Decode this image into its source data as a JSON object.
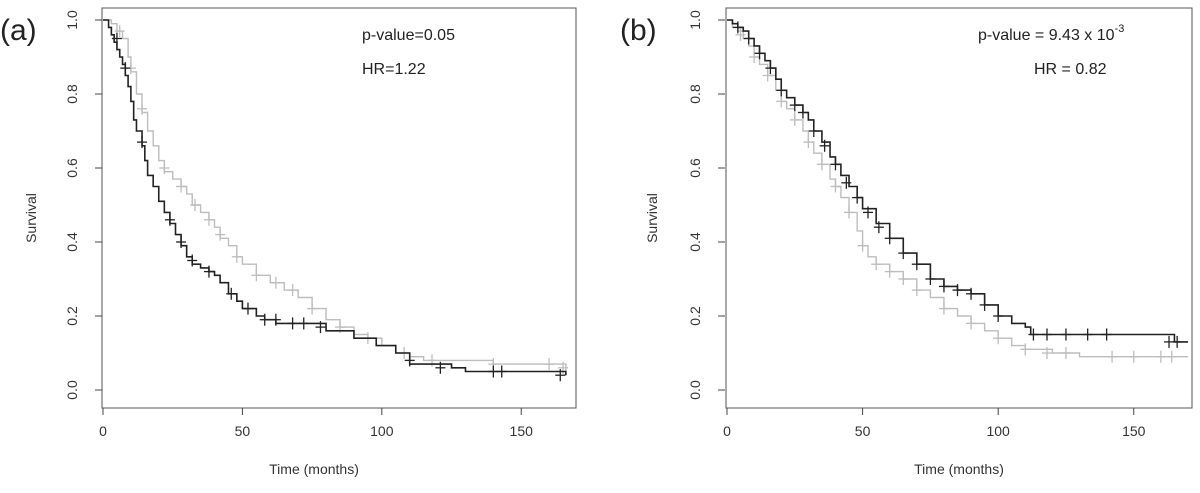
{
  "chart_data": [
    {
      "type": "line",
      "panel_label": "(a)",
      "xlabel": "Time (months)",
      "ylabel": "Survival",
      "xlim": [
        0,
        170
      ],
      "ylim": [
        0,
        1.05
      ],
      "x_ticks": [
        "0",
        "50",
        "100",
        "150"
      ],
      "y_ticks": [
        "0.0",
        "0.2",
        "0.4",
        "0.6",
        "0.8",
        "1.0"
      ],
      "grid": false,
      "annotations": {
        "pvalue": "p-value=0.05",
        "hr": "HR=1.22"
      },
      "colors": {
        "dark": "#222222",
        "light": "#bdbdbd"
      },
      "series": [
        {
          "style": "dark",
          "steps": [
            [
              0,
              1.0
            ],
            [
              2,
              0.98
            ],
            [
              3,
              0.96
            ],
            [
              4,
              0.94
            ],
            [
              5,
              0.92
            ],
            [
              6,
              0.9
            ],
            [
              7,
              0.88
            ],
            [
              8,
              0.85
            ],
            [
              9,
              0.82
            ],
            [
              10,
              0.78
            ],
            [
              11,
              0.73
            ],
            [
              12,
              0.7
            ],
            [
              14,
              0.66
            ],
            [
              15,
              0.62
            ],
            [
              16,
              0.58
            ],
            [
              18,
              0.55
            ],
            [
              20,
              0.51
            ],
            [
              22,
              0.48
            ],
            [
              24,
              0.45
            ],
            [
              26,
              0.42
            ],
            [
              28,
              0.39
            ],
            [
              30,
              0.36
            ],
            [
              32,
              0.34
            ],
            [
              35,
              0.33
            ],
            [
              38,
              0.32
            ],
            [
              40,
              0.31
            ],
            [
              42,
              0.29
            ],
            [
              45,
              0.26
            ],
            [
              48,
              0.24
            ],
            [
              50,
              0.22
            ],
            [
              55,
              0.2
            ],
            [
              58,
              0.19
            ],
            [
              62,
              0.18
            ],
            [
              80,
              0.16
            ],
            [
              90,
              0.14
            ],
            [
              98,
              0.12
            ],
            [
              105,
              0.1
            ],
            [
              110,
              0.07
            ],
            [
              125,
              0.06
            ],
            [
              130,
              0.05
            ],
            [
              140,
              0.05
            ],
            [
              166,
              0.04
            ]
          ],
          "censor": [
            [
              5,
              0.95
            ],
            [
              8,
              0.87
            ],
            [
              14,
              0.67
            ],
            [
              24,
              0.46
            ],
            [
              28,
              0.4
            ],
            [
              32,
              0.35
            ],
            [
              38,
              0.32
            ],
            [
              46,
              0.26
            ],
            [
              52,
              0.22
            ],
            [
              58,
              0.19
            ],
            [
              62,
              0.19
            ],
            [
              68,
              0.18
            ],
            [
              72,
              0.18
            ],
            [
              78,
              0.17
            ],
            [
              110,
              0.08
            ],
            [
              121,
              0.06
            ],
            [
              140,
              0.05
            ],
            [
              143,
              0.05
            ],
            [
              164,
              0.04
            ]
          ]
        },
        {
          "style": "light",
          "steps": [
            [
              0,
              1.0
            ],
            [
              3,
              0.99
            ],
            [
              5,
              0.97
            ],
            [
              7,
              0.95
            ],
            [
              9,
              0.9
            ],
            [
              10,
              0.86
            ],
            [
              12,
              0.8
            ],
            [
              14,
              0.75
            ],
            [
              16,
              0.7
            ],
            [
              18,
              0.66
            ],
            [
              20,
              0.62
            ],
            [
              22,
              0.59
            ],
            [
              25,
              0.57
            ],
            [
              28,
              0.55
            ],
            [
              30,
              0.53
            ],
            [
              32,
              0.5
            ],
            [
              35,
              0.48
            ],
            [
              38,
              0.46
            ],
            [
              40,
              0.44
            ],
            [
              42,
              0.41
            ],
            [
              45,
              0.39
            ],
            [
              48,
              0.36
            ],
            [
              50,
              0.34
            ],
            [
              55,
              0.31
            ],
            [
              60,
              0.29
            ],
            [
              65,
              0.27
            ],
            [
              70,
              0.25
            ],
            [
              75,
              0.22
            ],
            [
              80,
              0.19
            ],
            [
              85,
              0.17
            ],
            [
              90,
              0.15
            ],
            [
              95,
              0.14
            ],
            [
              100,
              0.12
            ],
            [
              105,
              0.1
            ],
            [
              110,
              0.09
            ],
            [
              115,
              0.08
            ],
            [
              140,
              0.07
            ],
            [
              165,
              0.07
            ],
            [
              166,
              0.05
            ]
          ],
          "censor": [
            [
              6,
              0.97
            ],
            [
              10,
              0.87
            ],
            [
              14,
              0.76
            ],
            [
              22,
              0.6
            ],
            [
              28,
              0.55
            ],
            [
              33,
              0.5
            ],
            [
              38,
              0.46
            ],
            [
              42,
              0.42
            ],
            [
              48,
              0.36
            ],
            [
              55,
              0.31
            ],
            [
              62,
              0.29
            ],
            [
              68,
              0.27
            ],
            [
              75,
              0.22
            ],
            [
              85,
              0.17
            ],
            [
              95,
              0.14
            ],
            [
              108,
              0.1
            ],
            [
              118,
              0.08
            ],
            [
              140,
              0.07
            ],
            [
              160,
              0.07
            ],
            [
              165,
              0.06
            ]
          ]
        }
      ]
    },
    {
      "type": "line",
      "panel_label": "(b)",
      "xlabel": "Time (months)",
      "ylabel": "Survival",
      "xlim": [
        0,
        170
      ],
      "ylim": [
        0,
        1.05
      ],
      "x_ticks": [
        "0",
        "50",
        "100",
        "150"
      ],
      "y_ticks": [
        "0.0",
        "0.2",
        "0.4",
        "0.6",
        "0.8",
        "1.0"
      ],
      "grid": false,
      "annotations": {
        "pvalue": "p-value = 9.43 x 10",
        "pvalue_exponent": "-3",
        "hr": "HR = 0.82"
      },
      "colors": {
        "dark": "#222222",
        "light": "#bdbdbd"
      },
      "series": [
        {
          "style": "dark",
          "steps": [
            [
              0,
              1.0
            ],
            [
              2,
              0.99
            ],
            [
              4,
              0.98
            ],
            [
              6,
              0.97
            ],
            [
              8,
              0.95
            ],
            [
              10,
              0.93
            ],
            [
              12,
              0.91
            ],
            [
              14,
              0.89
            ],
            [
              16,
              0.87
            ],
            [
              18,
              0.84
            ],
            [
              20,
              0.81
            ],
            [
              22,
              0.79
            ],
            [
              25,
              0.77
            ],
            [
              28,
              0.75
            ],
            [
              30,
              0.73
            ],
            [
              32,
              0.7
            ],
            [
              35,
              0.67
            ],
            [
              38,
              0.63
            ],
            [
              40,
              0.61
            ],
            [
              42,
              0.58
            ],
            [
              45,
              0.55
            ],
            [
              48,
              0.52
            ],
            [
              50,
              0.49
            ],
            [
              55,
              0.45
            ],
            [
              60,
              0.41
            ],
            [
              65,
              0.37
            ],
            [
              70,
              0.34
            ],
            [
              75,
              0.3
            ],
            [
              80,
              0.28
            ],
            [
              85,
              0.27
            ],
            [
              90,
              0.26
            ],
            [
              95,
              0.23
            ],
            [
              100,
              0.2
            ],
            [
              105,
              0.18
            ],
            [
              110,
              0.17
            ],
            [
              112,
              0.15
            ],
            [
              140,
              0.15
            ],
            [
              165,
              0.13
            ],
            [
              170,
              0.13
            ]
          ],
          "censor": [
            [
              4,
              0.98
            ],
            [
              8,
              0.95
            ],
            [
              12,
              0.91
            ],
            [
              16,
              0.87
            ],
            [
              20,
              0.81
            ],
            [
              25,
              0.77
            ],
            [
              28,
              0.75
            ],
            [
              32,
              0.7
            ],
            [
              36,
              0.66
            ],
            [
              40,
              0.61
            ],
            [
              44,
              0.56
            ],
            [
              48,
              0.52
            ],
            [
              52,
              0.48
            ],
            [
              56,
              0.44
            ],
            [
              60,
              0.41
            ],
            [
              65,
              0.37
            ],
            [
              70,
              0.34
            ],
            [
              75,
              0.3
            ],
            [
              80,
              0.28
            ],
            [
              85,
              0.27
            ],
            [
              90,
              0.26
            ],
            [
              95,
              0.23
            ],
            [
              100,
              0.2
            ],
            [
              113,
              0.15
            ],
            [
              118,
              0.15
            ],
            [
              125,
              0.15
            ],
            [
              133,
              0.15
            ],
            [
              140,
              0.15
            ],
            [
              163,
              0.13
            ],
            [
              166,
              0.13
            ]
          ]
        },
        {
          "style": "light",
          "steps": [
            [
              0,
              1.0
            ],
            [
              2,
              0.98
            ],
            [
              4,
              0.97
            ],
            [
              6,
              0.95
            ],
            [
              8,
              0.93
            ],
            [
              10,
              0.9
            ],
            [
              12,
              0.88
            ],
            [
              15,
              0.85
            ],
            [
              18,
              0.81
            ],
            [
              20,
              0.78
            ],
            [
              22,
              0.76
            ],
            [
              25,
              0.73
            ],
            [
              28,
              0.7
            ],
            [
              30,
              0.67
            ],
            [
              32,
              0.64
            ],
            [
              35,
              0.61
            ],
            [
              38,
              0.57
            ],
            [
              40,
              0.55
            ],
            [
              42,
              0.52
            ],
            [
              45,
              0.48
            ],
            [
              48,
              0.43
            ],
            [
              50,
              0.39
            ],
            [
              52,
              0.36
            ],
            [
              55,
              0.34
            ],
            [
              60,
              0.32
            ],
            [
              65,
              0.3
            ],
            [
              70,
              0.27
            ],
            [
              75,
              0.25
            ],
            [
              80,
              0.22
            ],
            [
              85,
              0.2
            ],
            [
              90,
              0.18
            ],
            [
              95,
              0.16
            ],
            [
              100,
              0.14
            ],
            [
              105,
              0.12
            ],
            [
              110,
              0.11
            ],
            [
              120,
              0.1
            ],
            [
              130,
              0.09
            ],
            [
              170,
              0.09
            ]
          ],
          "censor": [
            [
              5,
              0.96
            ],
            [
              10,
              0.9
            ],
            [
              15,
              0.85
            ],
            [
              20,
              0.78
            ],
            [
              25,
              0.73
            ],
            [
              30,
              0.67
            ],
            [
              35,
              0.61
            ],
            [
              40,
              0.55
            ],
            [
              45,
              0.48
            ],
            [
              50,
              0.39
            ],
            [
              55,
              0.34
            ],
            [
              60,
              0.32
            ],
            [
              65,
              0.3
            ],
            [
              70,
              0.27
            ],
            [
              80,
              0.22
            ],
            [
              90,
              0.18
            ],
            [
              100,
              0.14
            ],
            [
              110,
              0.11
            ],
            [
              118,
              0.1
            ],
            [
              125,
              0.1
            ],
            [
              142,
              0.09
            ],
            [
              150,
              0.09
            ],
            [
              160,
              0.09
            ],
            [
              164,
              0.09
            ]
          ]
        }
      ]
    }
  ]
}
